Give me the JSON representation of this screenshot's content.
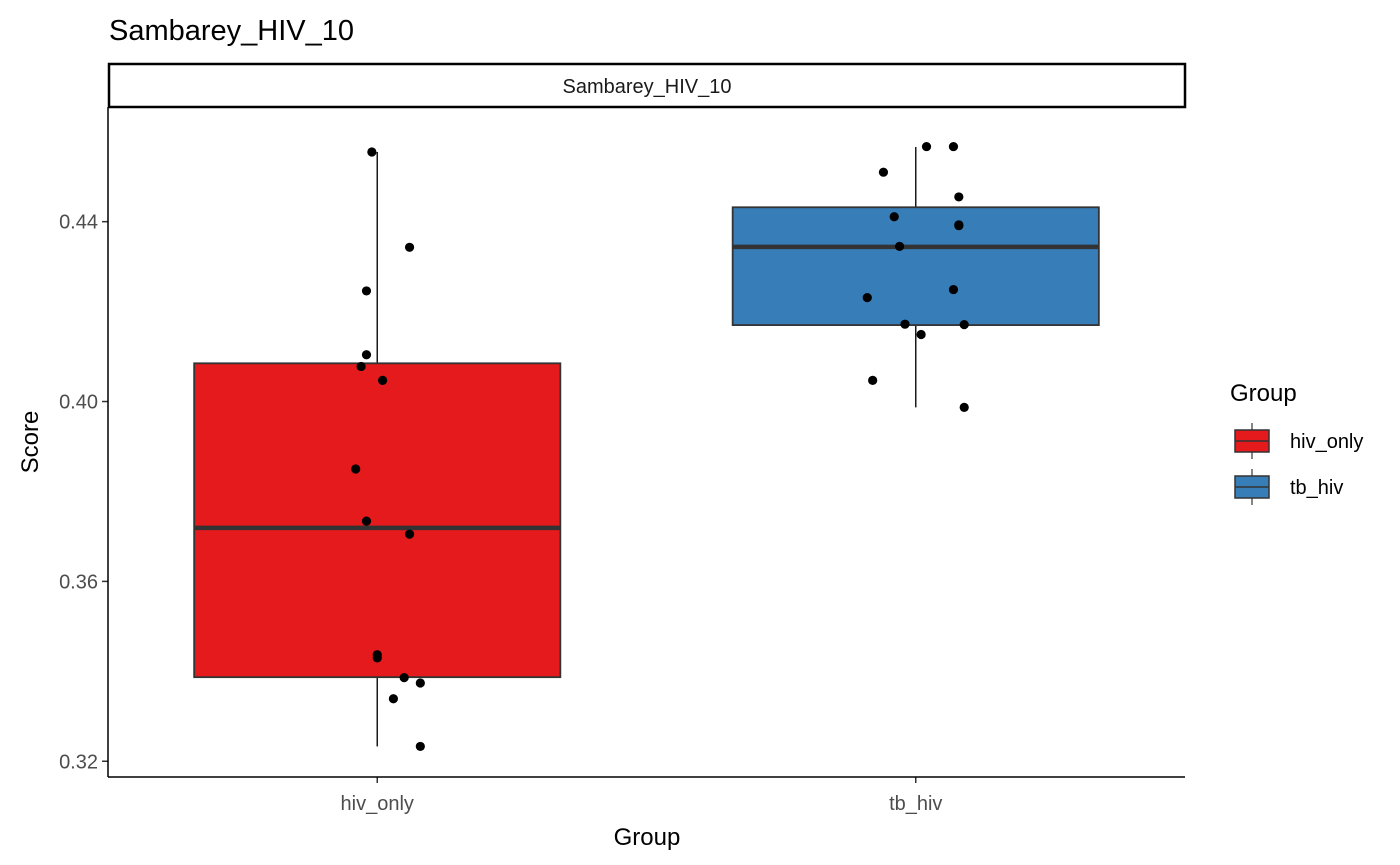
{
  "chart_data": {
    "type": "box",
    "title": "Sambarey_HIV_10",
    "facet_label": "Sambarey_HIV_10",
    "xlabel": "Group",
    "ylabel": "Score",
    "categories": [
      "hiv_only",
      "tb_hiv"
    ],
    "y_ticks": [
      0.32,
      0.36,
      0.4,
      0.44
    ],
    "y_tick_labels": [
      "0.32",
      "0.36",
      "0.40",
      "0.44"
    ],
    "ylim": [
      0.3165,
      0.4655
    ],
    "grid": false,
    "legend": {
      "title": "Group",
      "position": "right",
      "entries": [
        {
          "label": "hiv_only",
          "color": "#E41A1C"
        },
        {
          "label": "tb_hiv",
          "color": "#377EB8"
        }
      ]
    },
    "boxes": [
      {
        "group": "hiv_only",
        "color": "#E41A1C",
        "whisker_low": 0.3233,
        "q1": 0.3387,
        "median": 0.3719,
        "q3": 0.4085,
        "whisker_high": 0.4555
      },
      {
        "group": "tb_hiv",
        "color": "#377EB8",
        "whisker_low": 0.3987,
        "q1": 0.417,
        "median": 0.4344,
        "q3": 0.4432,
        "whisker_high": 0.4566
      }
    ],
    "points": [
      {
        "group": "hiv_only",
        "jitter": -0.01,
        "y": 0.4555
      },
      {
        "group": "hiv_only",
        "jitter": 0.06,
        "y": 0.4343
      },
      {
        "group": "hiv_only",
        "jitter": -0.02,
        "y": 0.4246
      },
      {
        "group": "hiv_only",
        "jitter": -0.02,
        "y": 0.4104
      },
      {
        "group": "hiv_only",
        "jitter": -0.03,
        "y": 0.4078
      },
      {
        "group": "hiv_only",
        "jitter": 0.01,
        "y": 0.4047
      },
      {
        "group": "hiv_only",
        "jitter": -0.04,
        "y": 0.385
      },
      {
        "group": "hiv_only",
        "jitter": -0.02,
        "y": 0.3734
      },
      {
        "group": "hiv_only",
        "jitter": 0.06,
        "y": 0.3705
      },
      {
        "group": "hiv_only",
        "jitter": 0.0,
        "y": 0.3437
      },
      {
        "group": "hiv_only",
        "jitter": 0.0,
        "y": 0.343
      },
      {
        "group": "hiv_only",
        "jitter": 0.05,
        "y": 0.3386
      },
      {
        "group": "hiv_only",
        "jitter": 0.08,
        "y": 0.3374
      },
      {
        "group": "hiv_only",
        "jitter": 0.03,
        "y": 0.3339
      },
      {
        "group": "hiv_only",
        "jitter": 0.08,
        "y": 0.3233
      },
      {
        "group": "tb_hiv",
        "jitter": 0.02,
        "y": 0.4567
      },
      {
        "group": "tb_hiv",
        "jitter": 0.07,
        "y": 0.4567
      },
      {
        "group": "tb_hiv",
        "jitter": -0.06,
        "y": 0.451
      },
      {
        "group": "tb_hiv",
        "jitter": 0.08,
        "y": 0.4455
      },
      {
        "group": "tb_hiv",
        "jitter": -0.04,
        "y": 0.4411
      },
      {
        "group": "tb_hiv",
        "jitter": 0.08,
        "y": 0.4393
      },
      {
        "group": "tb_hiv",
        "jitter": 0.08,
        "y": 0.4391
      },
      {
        "group": "tb_hiv",
        "jitter": -0.03,
        "y": 0.4345
      },
      {
        "group": "tb_hiv",
        "jitter": 0.07,
        "y": 0.4249
      },
      {
        "group": "tb_hiv",
        "jitter": -0.09,
        "y": 0.4231
      },
      {
        "group": "tb_hiv",
        "jitter": -0.02,
        "y": 0.4172
      },
      {
        "group": "tb_hiv",
        "jitter": 0.09,
        "y": 0.4171
      },
      {
        "group": "tb_hiv",
        "jitter": 0.01,
        "y": 0.4149
      },
      {
        "group": "tb_hiv",
        "jitter": -0.08,
        "y": 0.4047
      },
      {
        "group": "tb_hiv",
        "jitter": 0.09,
        "y": 0.3987
      }
    ]
  }
}
